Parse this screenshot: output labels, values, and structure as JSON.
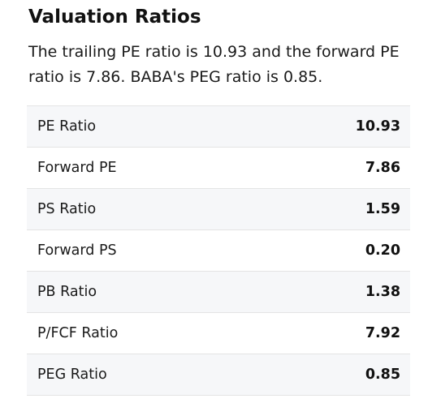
{
  "section": {
    "title": "Valuation Ratios",
    "summary": "The trailing PE ratio is 10.93 and the forward PE ratio is 7.86. BABA's PEG ratio is 0.85."
  },
  "ratios": [
    {
      "label": "PE Ratio",
      "value": "10.93"
    },
    {
      "label": "Forward PE",
      "value": "7.86"
    },
    {
      "label": "PS Ratio",
      "value": "1.59"
    },
    {
      "label": "Forward PS",
      "value": "0.20"
    },
    {
      "label": "PB Ratio",
      "value": "1.38"
    },
    {
      "label": "P/FCF Ratio",
      "value": "7.92"
    },
    {
      "label": "PEG Ratio",
      "value": "0.85"
    }
  ]
}
